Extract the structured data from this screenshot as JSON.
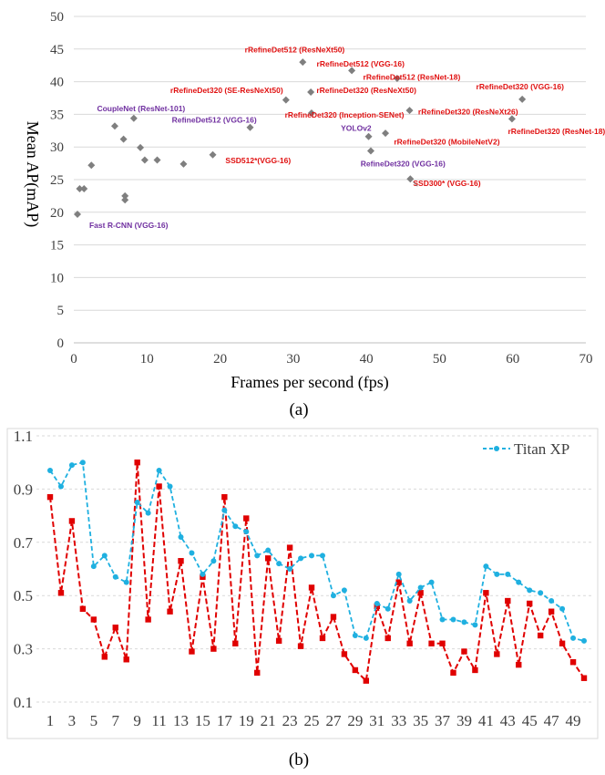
{
  "colors": {
    "point": "#7f7f7f",
    "red_label": "#e01010",
    "purple_label": "#7030a0",
    "cyan": "#1fb0e0",
    "red_series": "#e00000",
    "grid": "#d9d9d9",
    "axis": "#bfbfbf"
  },
  "chart_data": [
    {
      "type": "scatter",
      "caption": "(a)",
      "xlabel": "Frames per second (fps)",
      "ylabel": "Mean AP(mAP)",
      "xlim": [
        0,
        70
      ],
      "ylim": [
        0,
        50
      ],
      "x_ticks": [
        "0",
        "10",
        "20",
        "30",
        "40",
        "50",
        "60",
        "70"
      ],
      "y_ticks": [
        "0",
        "5",
        "10",
        "15",
        "20",
        "25",
        "30",
        "35",
        "40",
        "45",
        "50"
      ],
      "grid": "horizontal",
      "points": [
        {
          "x": 0.5,
          "y": 19.7
        },
        {
          "x": 0.8,
          "y": 23.6
        },
        {
          "x": 1.4,
          "y": 23.6
        },
        {
          "x": 2.4,
          "y": 27.2
        },
        {
          "x": 5.6,
          "y": 33.2
        },
        {
          "x": 6.8,
          "y": 31.2
        },
        {
          "x": 7.0,
          "y": 22.5
        },
        {
          "x": 7.0,
          "y": 21.9
        },
        {
          "x": 8.2,
          "y": 34.4
        },
        {
          "x": 9.1,
          "y": 29.9
        },
        {
          "x": 9.7,
          "y": 28.0
        },
        {
          "x": 11.4,
          "y": 28.0
        },
        {
          "x": 15.0,
          "y": 27.4
        },
        {
          "x": 19.0,
          "y": 28.8
        },
        {
          "x": 24.1,
          "y": 33.0
        },
        {
          "x": 29.0,
          "y": 37.2
        },
        {
          "x": 31.3,
          "y": 43.0
        },
        {
          "x": 32.4,
          "y": 38.4
        },
        {
          "x": 32.5,
          "y": 35.2
        },
        {
          "x": 38.0,
          "y": 41.7
        },
        {
          "x": 40.3,
          "y": 31.6
        },
        {
          "x": 40.6,
          "y": 29.4
        },
        {
          "x": 42.6,
          "y": 32.1
        },
        {
          "x": 44.2,
          "y": 40.5
        },
        {
          "x": 45.9,
          "y": 35.6
        },
        {
          "x": 46.0,
          "y": 25.1
        },
        {
          "x": 59.9,
          "y": 34.3
        },
        {
          "x": 61.3,
          "y": 37.3
        }
      ],
      "labels": [
        {
          "text": "rRefineDet512 (ResNeXt50)",
          "x": 30.2,
          "y": 44.5,
          "color": "red"
        },
        {
          "text": "rRefineDet512 (VGG-16)",
          "x": 39.2,
          "y": 42.3,
          "color": "red"
        },
        {
          "text": "rRefineDet512 (ResNet-18)",
          "x": 46.2,
          "y": 40.3,
          "color": "red"
        },
        {
          "text": "rRefineDet320 (VGG-16)",
          "x": 61.0,
          "y": 38.8,
          "color": "red"
        },
        {
          "text": "rRefineDet320 (SE-ResNeXt50)",
          "x": 20.9,
          "y": 38.3,
          "color": "red"
        },
        {
          "text": "rRefineDet320 (ResNeXt50)",
          "x": 40.0,
          "y": 38.3,
          "color": "red"
        },
        {
          "text": "CoupleNet (ResNet-101)",
          "x": 9.2,
          "y": 35.5,
          "color": "purple"
        },
        {
          "text": "RefineDet512 (VGG-16)",
          "x": 19.2,
          "y": 33.7,
          "color": "purple"
        },
        {
          "text": "rRefineDet320 (ResNeXt26)",
          "x": 53.9,
          "y": 35.0,
          "color": "red"
        },
        {
          "text": "rRefineDet320 (Inception-SENet)",
          "x": 37.0,
          "y": 34.5,
          "color": "red"
        },
        {
          "text": "rRefineDet320 (ResNet-18)",
          "x": 66.0,
          "y": 32.0,
          "color": "red"
        },
        {
          "text": "YOLOv2",
          "x": 38.6,
          "y": 32.5,
          "color": "purple"
        },
        {
          "text": "rRefineDet320 (MobileNetV2)",
          "x": 51.0,
          "y": 30.4,
          "color": "red"
        },
        {
          "text": "SSD512*(VGG-16)",
          "x": 25.2,
          "y": 27.5,
          "color": "red"
        },
        {
          "text": "RefineDet320 (VGG-16)",
          "x": 45.0,
          "y": 27.0,
          "color": "purple"
        },
        {
          "text": "SSD300* (VGG-16)",
          "x": 51.0,
          "y": 24.0,
          "color": "red"
        },
        {
          "text": "Fast R-CNN (VGG-16)",
          "x": 7.5,
          "y": 17.6,
          "color": "purple"
        }
      ]
    },
    {
      "type": "line",
      "caption": "(b)",
      "ylim": [
        0.1,
        1.1
      ],
      "y_ticks": [
        "0.1",
        "0.3",
        "0.5",
        "0.7",
        "0.9",
        "1.1"
      ],
      "x_ticks": [
        "1",
        "3",
        "5",
        "7",
        "9",
        "11",
        "13",
        "15",
        "17",
        "19",
        "21",
        "23",
        "25",
        "27",
        "29",
        "31",
        "33",
        "35",
        "37",
        "39",
        "41",
        "43",
        "45",
        "47",
        "49"
      ],
      "grid": "horizontal",
      "legend": "top-right",
      "x": [
        1,
        2,
        3,
        4,
        5,
        6,
        7,
        8,
        9,
        10,
        11,
        12,
        13,
        14,
        15,
        16,
        17,
        18,
        19,
        20,
        21,
        22,
        23,
        24,
        25,
        26,
        27,
        28,
        29,
        30,
        31,
        32,
        33,
        34,
        35,
        36,
        37,
        38,
        39,
        40,
        41,
        42,
        43,
        44,
        45,
        46,
        47,
        48,
        49,
        50
      ],
      "series": [
        {
          "name": "Titan XP",
          "style": "cyan-dashed-circle",
          "values": [
            0.97,
            0.91,
            0.99,
            1.0,
            0.61,
            0.65,
            0.57,
            0.55,
            0.85,
            0.81,
            0.97,
            0.91,
            0.72,
            0.66,
            0.58,
            0.63,
            0.82,
            0.76,
            0.74,
            0.65,
            0.67,
            0.62,
            0.6,
            0.64,
            0.65,
            0.65,
            0.5,
            0.52,
            0.35,
            0.34,
            0.47,
            0.45,
            0.58,
            0.48,
            0.53,
            0.55,
            0.41,
            0.41,
            0.4,
            0.39,
            0.61,
            0.58,
            0.58,
            0.55,
            0.52,
            0.51,
            0.48,
            0.45,
            0.34,
            0.33
          ]
        },
        {
          "name": "",
          "style": "red-dashed-square",
          "values": [
            0.87,
            0.51,
            0.78,
            0.45,
            0.41,
            0.27,
            0.38,
            0.26,
            1.0,
            0.41,
            0.91,
            0.44,
            0.63,
            0.29,
            0.57,
            0.3,
            0.87,
            0.32,
            0.79,
            0.21,
            0.64,
            0.33,
            0.68,
            0.31,
            0.53,
            0.34,
            0.42,
            0.28,
            0.22,
            0.18,
            0.46,
            0.34,
            0.55,
            0.32,
            0.51,
            0.32,
            0.32,
            0.21,
            0.29,
            0.22,
            0.51,
            0.28,
            0.48,
            0.24,
            0.47,
            0.35,
            0.44,
            0.32,
            0.25,
            0.19
          ]
        }
      ]
    }
  ]
}
